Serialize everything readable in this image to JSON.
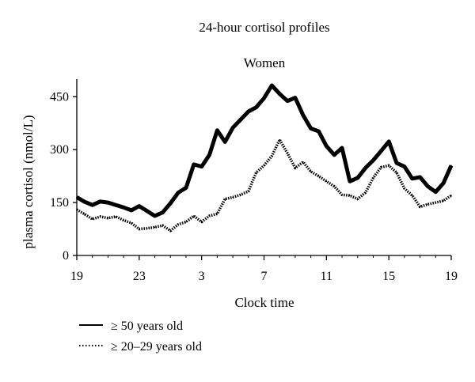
{
  "chart_data": {
    "type": "line",
    "title": "24-hour cortisol profiles",
    "subtitle": "Women",
    "xlabel": "Clock time",
    "ylabel": "plasma cortisol (nmol/L)",
    "ylim": [
      0,
      500
    ],
    "yticks": [
      0,
      150,
      300,
      450
    ],
    "xticks": [
      "19",
      "23",
      "3",
      "7",
      "11",
      "15",
      "19"
    ],
    "xlim": [
      0,
      24
    ],
    "legend_position": "bottom-left",
    "series": [
      {
        "name": "≥ 50 years old",
        "style": "solid",
        "color": "#000000",
        "x": [
          0,
          0.5,
          1,
          1.5,
          2,
          2.5,
          3,
          3.5,
          4,
          4.5,
          5,
          5.5,
          6,
          6.5,
          7,
          7.5,
          8,
          8.5,
          9,
          9.5,
          10,
          10.5,
          11,
          11.5,
          12,
          12.5,
          13,
          13.5,
          14,
          14.5,
          15,
          15.5,
          16,
          16.5,
          17,
          17.5,
          18,
          18.5,
          19,
          19.5,
          20,
          20.5,
          21,
          21.5,
          22,
          22.5,
          23,
          23.5,
          24
        ],
        "values": [
          165,
          152,
          143,
          153,
          150,
          143,
          136,
          128,
          140,
          126,
          112,
          122,
          148,
          178,
          192,
          258,
          252,
          285,
          355,
          322,
          362,
          385,
          408,
          420,
          446,
          482,
          458,
          438,
          447,
          398,
          360,
          352,
          310,
          285,
          305,
          210,
          220,
          248,
          270,
          296,
          323,
          262,
          252,
          218,
          222,
          196,
          180,
          205,
          255
        ]
      },
      {
        "name": "≥ 20–29 years old",
        "style": "dotted",
        "color": "#000000",
        "x": [
          0,
          0.5,
          1,
          1.5,
          2,
          2.5,
          3,
          3.5,
          4,
          4.5,
          5,
          5.5,
          6,
          6.5,
          7,
          7.5,
          8,
          8.5,
          9,
          9.5,
          10,
          10.5,
          11,
          11.5,
          12,
          12.5,
          13,
          13.5,
          14,
          14.5,
          15,
          15.5,
          16,
          16.5,
          17,
          17.5,
          18,
          18.5,
          19,
          19.5,
          20,
          20.5,
          21,
          21.5,
          22,
          22.5,
          23,
          23.5,
          24
        ],
        "values": [
          130,
          117,
          103,
          110,
          106,
          110,
          100,
          92,
          75,
          77,
          80,
          85,
          70,
          88,
          95,
          112,
          95,
          112,
          118,
          160,
          165,
          172,
          182,
          235,
          255,
          282,
          328,
          290,
          248,
          265,
          238,
          225,
          210,
          196,
          172,
          170,
          160,
          178,
          220,
          250,
          255,
          235,
          190,
          170,
          138,
          145,
          150,
          155,
          170
        ]
      }
    ]
  }
}
